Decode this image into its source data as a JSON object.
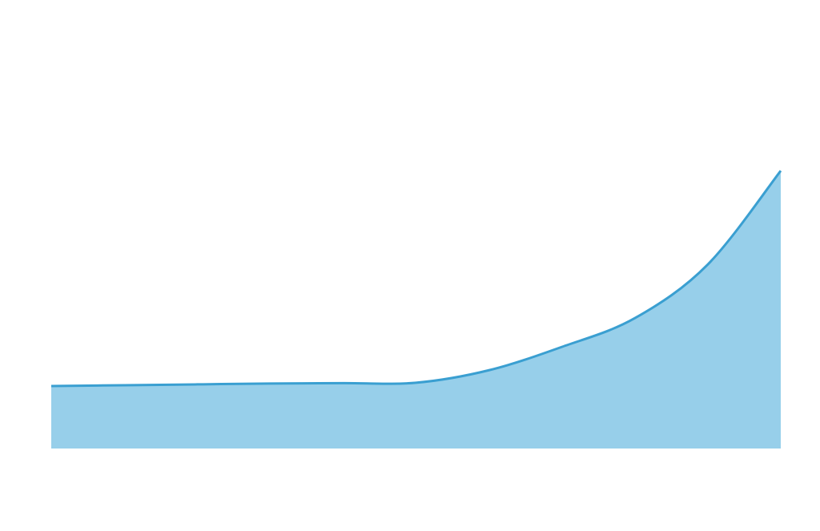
{
  "chart_data": {
    "type": "area",
    "x": [
      0,
      1,
      2,
      3,
      4,
      5,
      6,
      7,
      8,
      9,
      10
    ],
    "xlim": [
      0,
      10
    ],
    "ylim": [
      0,
      100
    ],
    "series": [
      {
        "color": "#3a9fd1",
        "fill": "#97cfea",
        "values": [
          15,
          15.2,
          15.4,
          15.6,
          15.7,
          15.8,
          18.8,
          24.4,
          31.3,
          44.2,
          66.7
        ]
      }
    ]
  }
}
